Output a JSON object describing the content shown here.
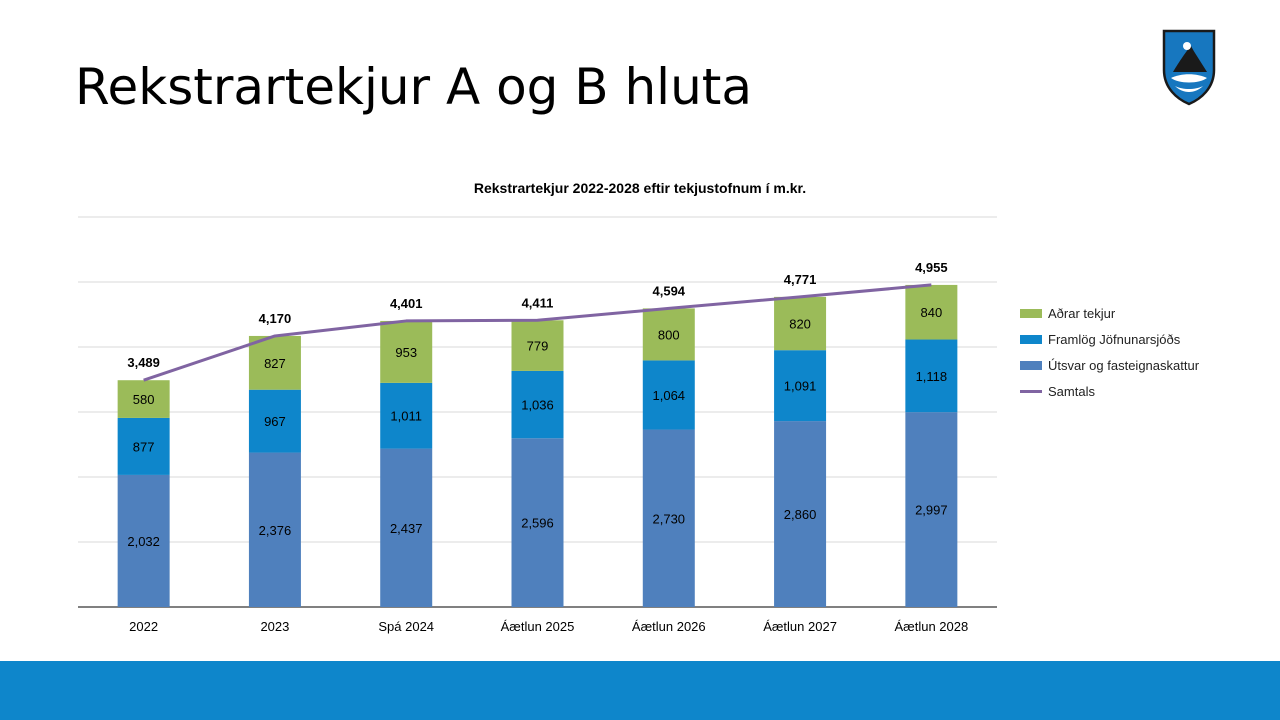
{
  "slide": {
    "title": "Rekstrartekjur A og B hluta"
  },
  "colors": {
    "footer": "#0e86cb",
    "utsvar": "#4f80bd",
    "framlog": "#0e86cb",
    "adrar": "#9bbb59",
    "samtals": "#8064a2",
    "grid": "#d9d9d9",
    "axis": "#000000"
  },
  "chart_data": {
    "type": "bar",
    "stacked": true,
    "title": "Rekstrartekjur 2022-2028 eftir tekjustofnum í m.kr.",
    "categories": [
      "2022",
      "2023",
      "Spá 2024",
      "Áætlun 2025",
      "Áætlun 2026",
      "Áætlun 2027",
      "Áætlun 2028"
    ],
    "series": [
      {
        "name": "Útsvar og fasteignaskattur",
        "color": "#4f80bd",
        "values": [
          2032,
          2376,
          2437,
          2596,
          2730,
          2860,
          2997
        ],
        "labels": [
          "2,032",
          "2,376",
          "2,437",
          "2,596",
          "2,730",
          "2,860",
          "2,997"
        ]
      },
      {
        "name": "Framlög Jöfnunarsjóðs",
        "color": "#0e86cb",
        "values": [
          877,
          967,
          1011,
          1036,
          1064,
          1091,
          1118
        ],
        "labels": [
          "877",
          "967",
          "1,011",
          "1,036",
          "1,064",
          "1,091",
          "1,118"
        ]
      },
      {
        "name": "Aðrar tekjur",
        "color": "#9bbb59",
        "values": [
          580,
          827,
          953,
          779,
          800,
          820,
          840
        ],
        "labels": [
          "580",
          "827",
          "953",
          "779",
          "800",
          "820",
          "840"
        ]
      }
    ],
    "line": {
      "name": "Samtals",
      "color": "#8064a2",
      "values": [
        3489,
        4170,
        4401,
        4411,
        4594,
        4771,
        4955
      ],
      "labels": [
        "3,489",
        "4,170",
        "4,401",
        "4,411",
        "4,594",
        "4,771",
        "4,955"
      ]
    },
    "legend_order": [
      "Aðrar tekjur",
      "Framlög Jöfnunarsjóðs",
      "Útsvar og fasteignaskattur",
      "Samtals"
    ],
    "ylim": [
      0,
      6000
    ],
    "grid": true,
    "legend_position": "right"
  }
}
